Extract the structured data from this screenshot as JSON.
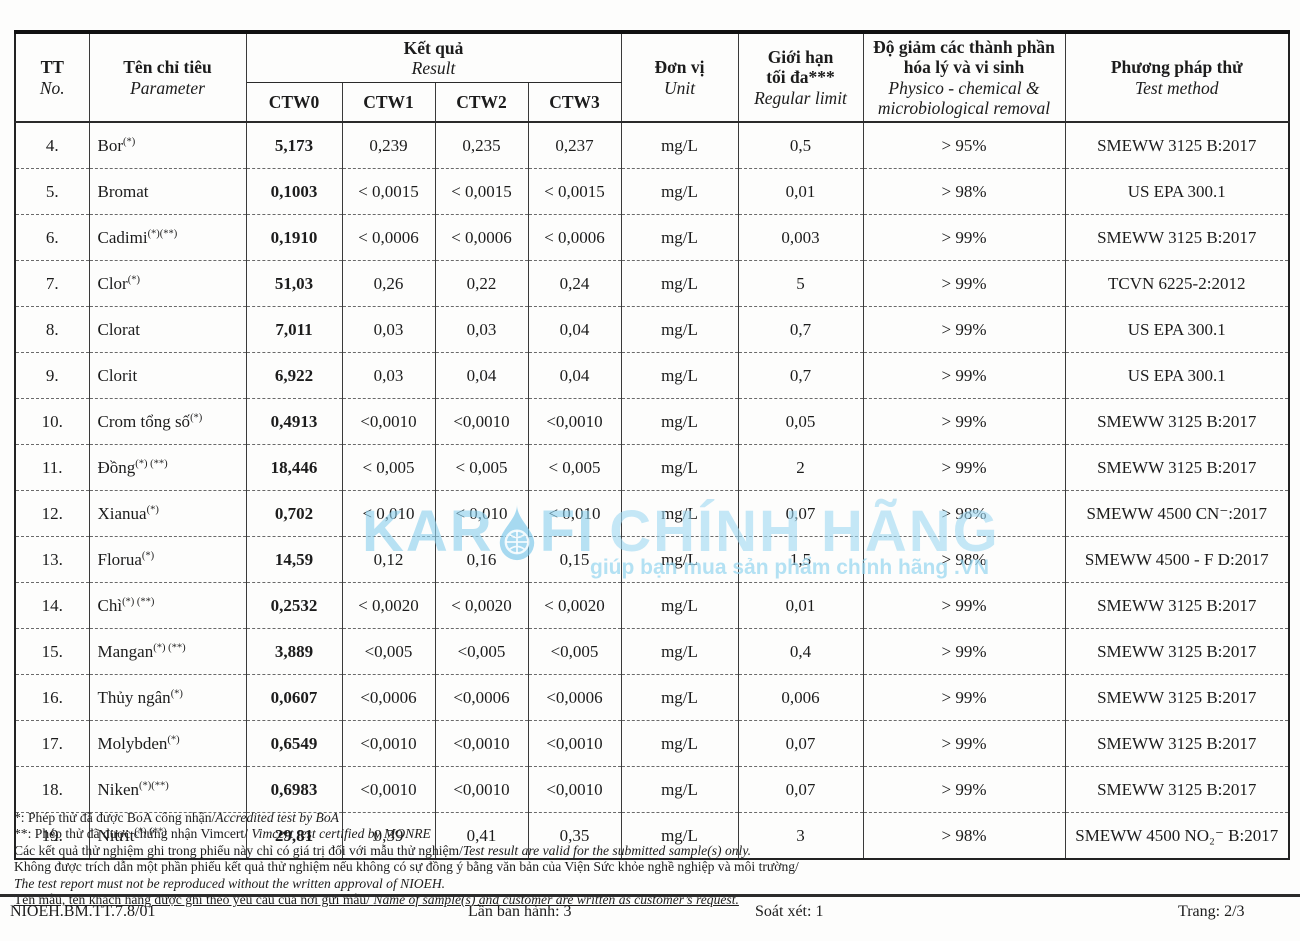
{
  "watermark": {
    "brand_left": "KAR",
    "brand_right": "FI",
    "brand_suffix": "CHÍNH HÃNG",
    "tagline": "giúp bạn mua sản phẩm chính hãng .VN",
    "color": "#8ccfee"
  },
  "table": {
    "header": {
      "tt_vi": "TT",
      "tt_en": "No.",
      "parameter_vi": "Tên chỉ tiêu",
      "parameter_en": "Parameter",
      "result_vi": "Kết quả",
      "result_en": "Result",
      "result_cols": [
        "CTW0",
        "CTW1",
        "CTW2",
        "CTW3"
      ],
      "unit_vi": "Đơn vị",
      "unit_en": "Unit",
      "limit_vi1": "Giới hạn",
      "limit_vi2": "tối đa***",
      "limit_en": "Regular limit",
      "removal_vi": "Độ giảm các thành phần hóa lý và vi sinh",
      "removal_en": "Physico - chemical & microbiological removal",
      "method_vi": "Phương pháp thử",
      "method_en": "Test method"
    },
    "rows": [
      {
        "no": "4.",
        "param": "Bor",
        "sup": "(*)",
        "ctw0": "5,173",
        "ctw1": "0,239",
        "ctw2": "0,235",
        "ctw3": "0,237",
        "unit": "mg/L",
        "limit": "0,5",
        "removal": "> 95%",
        "method": "SMEWW 3125 B:2017"
      },
      {
        "no": "5.",
        "param": "Bromat",
        "sup": "",
        "ctw0": "0,1003",
        "ctw1": "< 0,0015",
        "ctw2": "< 0,0015",
        "ctw3": "< 0,0015",
        "unit": "mg/L",
        "limit": "0,01",
        "removal": "> 98%",
        "method": "US EPA 300.1"
      },
      {
        "no": "6.",
        "param": "Cadimi",
        "sup": "(*)(**)",
        "ctw0": "0,1910",
        "ctw1": "< 0,0006",
        "ctw2": "< 0,0006",
        "ctw3": "< 0,0006",
        "unit": "mg/L",
        "limit": "0,003",
        "removal": "> 99%",
        "method": "SMEWW 3125 B:2017"
      },
      {
        "no": "7.",
        "param": "Clor",
        "sup": "(*)",
        "ctw0": "51,03",
        "ctw1": "0,26",
        "ctw2": "0,22",
        "ctw3": "0,24",
        "unit": "mg/L",
        "limit": "5",
        "removal": "> 99%",
        "method": "TCVN 6225-2:2012"
      },
      {
        "no": "8.",
        "param": "Clorat",
        "sup": "",
        "ctw0": "7,011",
        "ctw1": "0,03",
        "ctw2": "0,03",
        "ctw3": "0,04",
        "unit": "mg/L",
        "limit": "0,7",
        "removal": "> 99%",
        "method": "US EPA 300.1"
      },
      {
        "no": "9.",
        "param": "Clorit",
        "sup": "",
        "ctw0": "6,922",
        "ctw1": "0,03",
        "ctw2": "0,04",
        "ctw3": "0,04",
        "unit": "mg/L",
        "limit": "0,7",
        "removal": "> 99%",
        "method": "US EPA 300.1"
      },
      {
        "no": "10.",
        "param": "Crom tổng số",
        "sup": "(*)",
        "ctw0": "0,4913",
        "ctw1": "<0,0010",
        "ctw2": "<0,0010",
        "ctw3": "<0,0010",
        "unit": "mg/L",
        "limit": "0,05",
        "removal": "> 99%",
        "method": "SMEWW 3125 B:2017"
      },
      {
        "no": "11.",
        "param": "Đồng",
        "sup": "(*) (**)",
        "ctw0": "18,446",
        "ctw1": "< 0,005",
        "ctw2": "< 0,005",
        "ctw3": "< 0,005",
        "unit": "mg/L",
        "limit": "2",
        "removal": "> 99%",
        "method": "SMEWW 3125 B:2017"
      },
      {
        "no": "12.",
        "param": "Xianua",
        "sup": "(*)",
        "ctw0": "0,702",
        "ctw1": "< 0,010",
        "ctw2": "< 0,010",
        "ctw3": "< 0,010",
        "unit": "mg/L",
        "limit": "0,07",
        "removal": "> 98%",
        "method": "SMEWW 4500 CN⁻:2017"
      },
      {
        "no": "13.",
        "param": "Florua",
        "sup": "(*)",
        "ctw0": "14,59",
        "ctw1": "0,12",
        "ctw2": "0,16",
        "ctw3": "0,15",
        "unit": "mg/L",
        "limit": "1,5",
        "removal": "> 98%",
        "method": "SMEWW 4500 - F D:2017"
      },
      {
        "no": "14.",
        "param": "Chì",
        "sup": "(*) (**)",
        "ctw0": "0,2532",
        "ctw1": "< 0,0020",
        "ctw2": "< 0,0020",
        "ctw3": "< 0,0020",
        "unit": "mg/L",
        "limit": "0,01",
        "removal": "> 99%",
        "method": "SMEWW 3125 B:2017"
      },
      {
        "no": "15.",
        "param": "Mangan",
        "sup": "(*) (**)",
        "ctw0": "3,889",
        "ctw1": "<0,005",
        "ctw2": "<0,005",
        "ctw3": "<0,005",
        "unit": "mg/L",
        "limit": "0,4",
        "removal": "> 99%",
        "method": "SMEWW 3125 B:2017"
      },
      {
        "no": "16.",
        "param": "Thủy ngân",
        "sup": "(*)",
        "ctw0": "0,0607",
        "ctw1": "<0,0006",
        "ctw2": "<0,0006",
        "ctw3": "<0,0006",
        "unit": "mg/L",
        "limit": "0,006",
        "removal": "> 99%",
        "method": "SMEWW 3125 B:2017"
      },
      {
        "no": "17.",
        "param": "Molybden",
        "sup": "(*)",
        "ctw0": "0,6549",
        "ctw1": "<0,0010",
        "ctw2": "<0,0010",
        "ctw3": "<0,0010",
        "unit": "mg/L",
        "limit": "0,07",
        "removal": "> 99%",
        "method": "SMEWW 3125 B:2017"
      },
      {
        "no": "18.",
        "param": "Niken",
        "sup": "(*)(**)",
        "ctw0": "0,6983",
        "ctw1": "<0,0010",
        "ctw2": "<0,0010",
        "ctw3": "<0,0010",
        "unit": "mg/L",
        "limit": "0,07",
        "removal": "> 99%",
        "method": "SMEWW 3125 B:2017"
      },
      {
        "no": "19.",
        "param": "Nitrit",
        "sup": "(*) (**)",
        "ctw0": "29,81",
        "ctw1": "0,39",
        "ctw2": "0,41",
        "ctw3": "0,35",
        "unit": "mg/L",
        "limit": "3",
        "removal": "> 98%",
        "method": "SMEWW 4500 NO₂⁻ B:2017"
      }
    ]
  },
  "footnotes": [
    {
      "text": "*: Phép thử đã được BoA công nhận/",
      "italic": "Accredited test by BoA",
      "underline": false
    },
    {
      "text": "**: Phép thử đã được chứng nhận Vimcert/ ",
      "italic": "Vimcert test certified by MONRE",
      "underline": false
    },
    {
      "text": "Các kết quả thử nghiệm ghi trong phiếu này chỉ có giá trị đối với mẫu thử nghiệm/",
      "italic": "Test result are valid for the submitted sample(s) only.",
      "underline": false
    },
    {
      "text": "Không được trích dẫn một phần phiếu kết quả thử nghiệm nếu không có sự đồng ý bằng văn bản của Viện Sức khỏe nghề nghiệp và môi trường/",
      "italic": "",
      "underline": false
    },
    {
      "text": "",
      "italic": "The test report must not be reproduced without the written approval of NIOEH.",
      "underline": false
    },
    {
      "text": "Tên mẫu, tên khách hàng được ghi theo yêu cầu của nơi gửi mẫu/ ",
      "italic": "Name of sample(s) and customer are written as customer’s request.",
      "underline": true
    }
  ],
  "footer": {
    "code": "NIOEH.BM.TT.7.8/01",
    "issue": "Lần ban hành: 3",
    "review": "Soát xét: 1",
    "page": "Trang: 2/3"
  }
}
